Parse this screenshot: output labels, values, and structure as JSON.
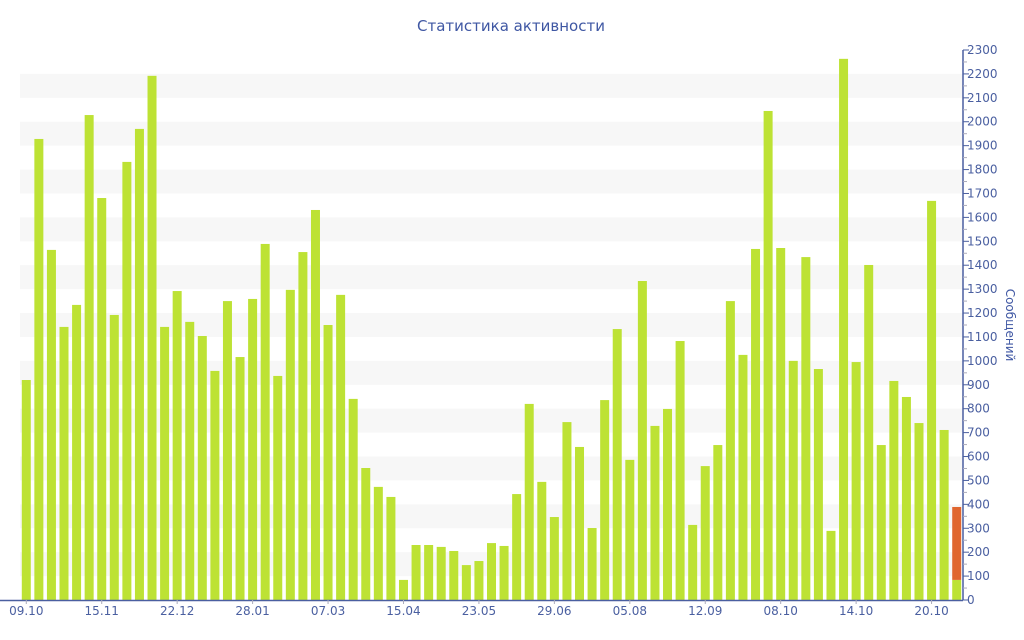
{
  "chart_data": {
    "type": "bar",
    "stacked": true,
    "title": "Статистика активности",
    "ylabel": "Сообщений",
    "xlabel": "",
    "ylim": [
      0,
      2300
    ],
    "y_ticks": [
      0,
      100,
      200,
      300,
      400,
      500,
      600,
      700,
      800,
      900,
      1000,
      1100,
      1200,
      1300,
      1400,
      1500,
      1600,
      1700,
      1800,
      1900,
      2000,
      2100,
      2200,
      2300
    ],
    "y_axis_side": "right",
    "x_tick_labels": [
      {
        "index": 0,
        "label": "09.10"
      },
      {
        "index": 6,
        "label": "15.11"
      },
      {
        "index": 12,
        "label": "22.12"
      },
      {
        "index": 18,
        "label": "28.01"
      },
      {
        "index": 24,
        "label": "07.03"
      },
      {
        "index": 30,
        "label": "15.04"
      },
      {
        "index": 36,
        "label": "23.05"
      },
      {
        "index": 42,
        "label": "29.06"
      },
      {
        "index": 48,
        "label": "05.08"
      },
      {
        "index": 54,
        "label": "12.09"
      },
      {
        "index": 60,
        "label": "08.10"
      },
      {
        "index": 66,
        "label": "14.10"
      },
      {
        "index": 72,
        "label": "20.10"
      }
    ],
    "series": [
      {
        "name": "main",
        "color": "#bde234",
        "values": [
          920,
          1928,
          1464,
          1142,
          1234,
          2028,
          1681,
          1192,
          1832,
          1970,
          2192,
          1142,
          1292,
          1163,
          1104,
          958,
          1250,
          1016,
          1259,
          1489,
          937,
          1297,
          1455,
          1631,
          1150,
          1276,
          841,
          552,
          473,
          431,
          84,
          230,
          230,
          222,
          205,
          146,
          163,
          238,
          226,
          443,
          820,
          494,
          347,
          744,
          640,
          301,
          836,
          1133,
          586,
          1334,
          728,
          799,
          1083,
          314,
          560,
          648,
          1250,
          1025,
          1468,
          2045,
          1472,
          1000,
          1434,
          966,
          289,
          2263,
          995,
          1401,
          648,
          916,
          849,
          740,
          1669,
          711,
          84
        ]
      },
      {
        "name": "current",
        "color": "#e0662f",
        "values": [
          0,
          0,
          0,
          0,
          0,
          0,
          0,
          0,
          0,
          0,
          0,
          0,
          0,
          0,
          0,
          0,
          0,
          0,
          0,
          0,
          0,
          0,
          0,
          0,
          0,
          0,
          0,
          0,
          0,
          0,
          0,
          0,
          0,
          0,
          0,
          0,
          0,
          0,
          0,
          0,
          0,
          0,
          0,
          0,
          0,
          0,
          0,
          0,
          0,
          0,
          0,
          0,
          0,
          0,
          0,
          0,
          0,
          0,
          0,
          0,
          0,
          0,
          0,
          0,
          0,
          0,
          0,
          0,
          0,
          0,
          0,
          0,
          0,
          0,
          305
        ]
      }
    ],
    "grid": "alternating bands",
    "band_color": "#f7f7f7",
    "axis_color": "#4a5fa0"
  }
}
